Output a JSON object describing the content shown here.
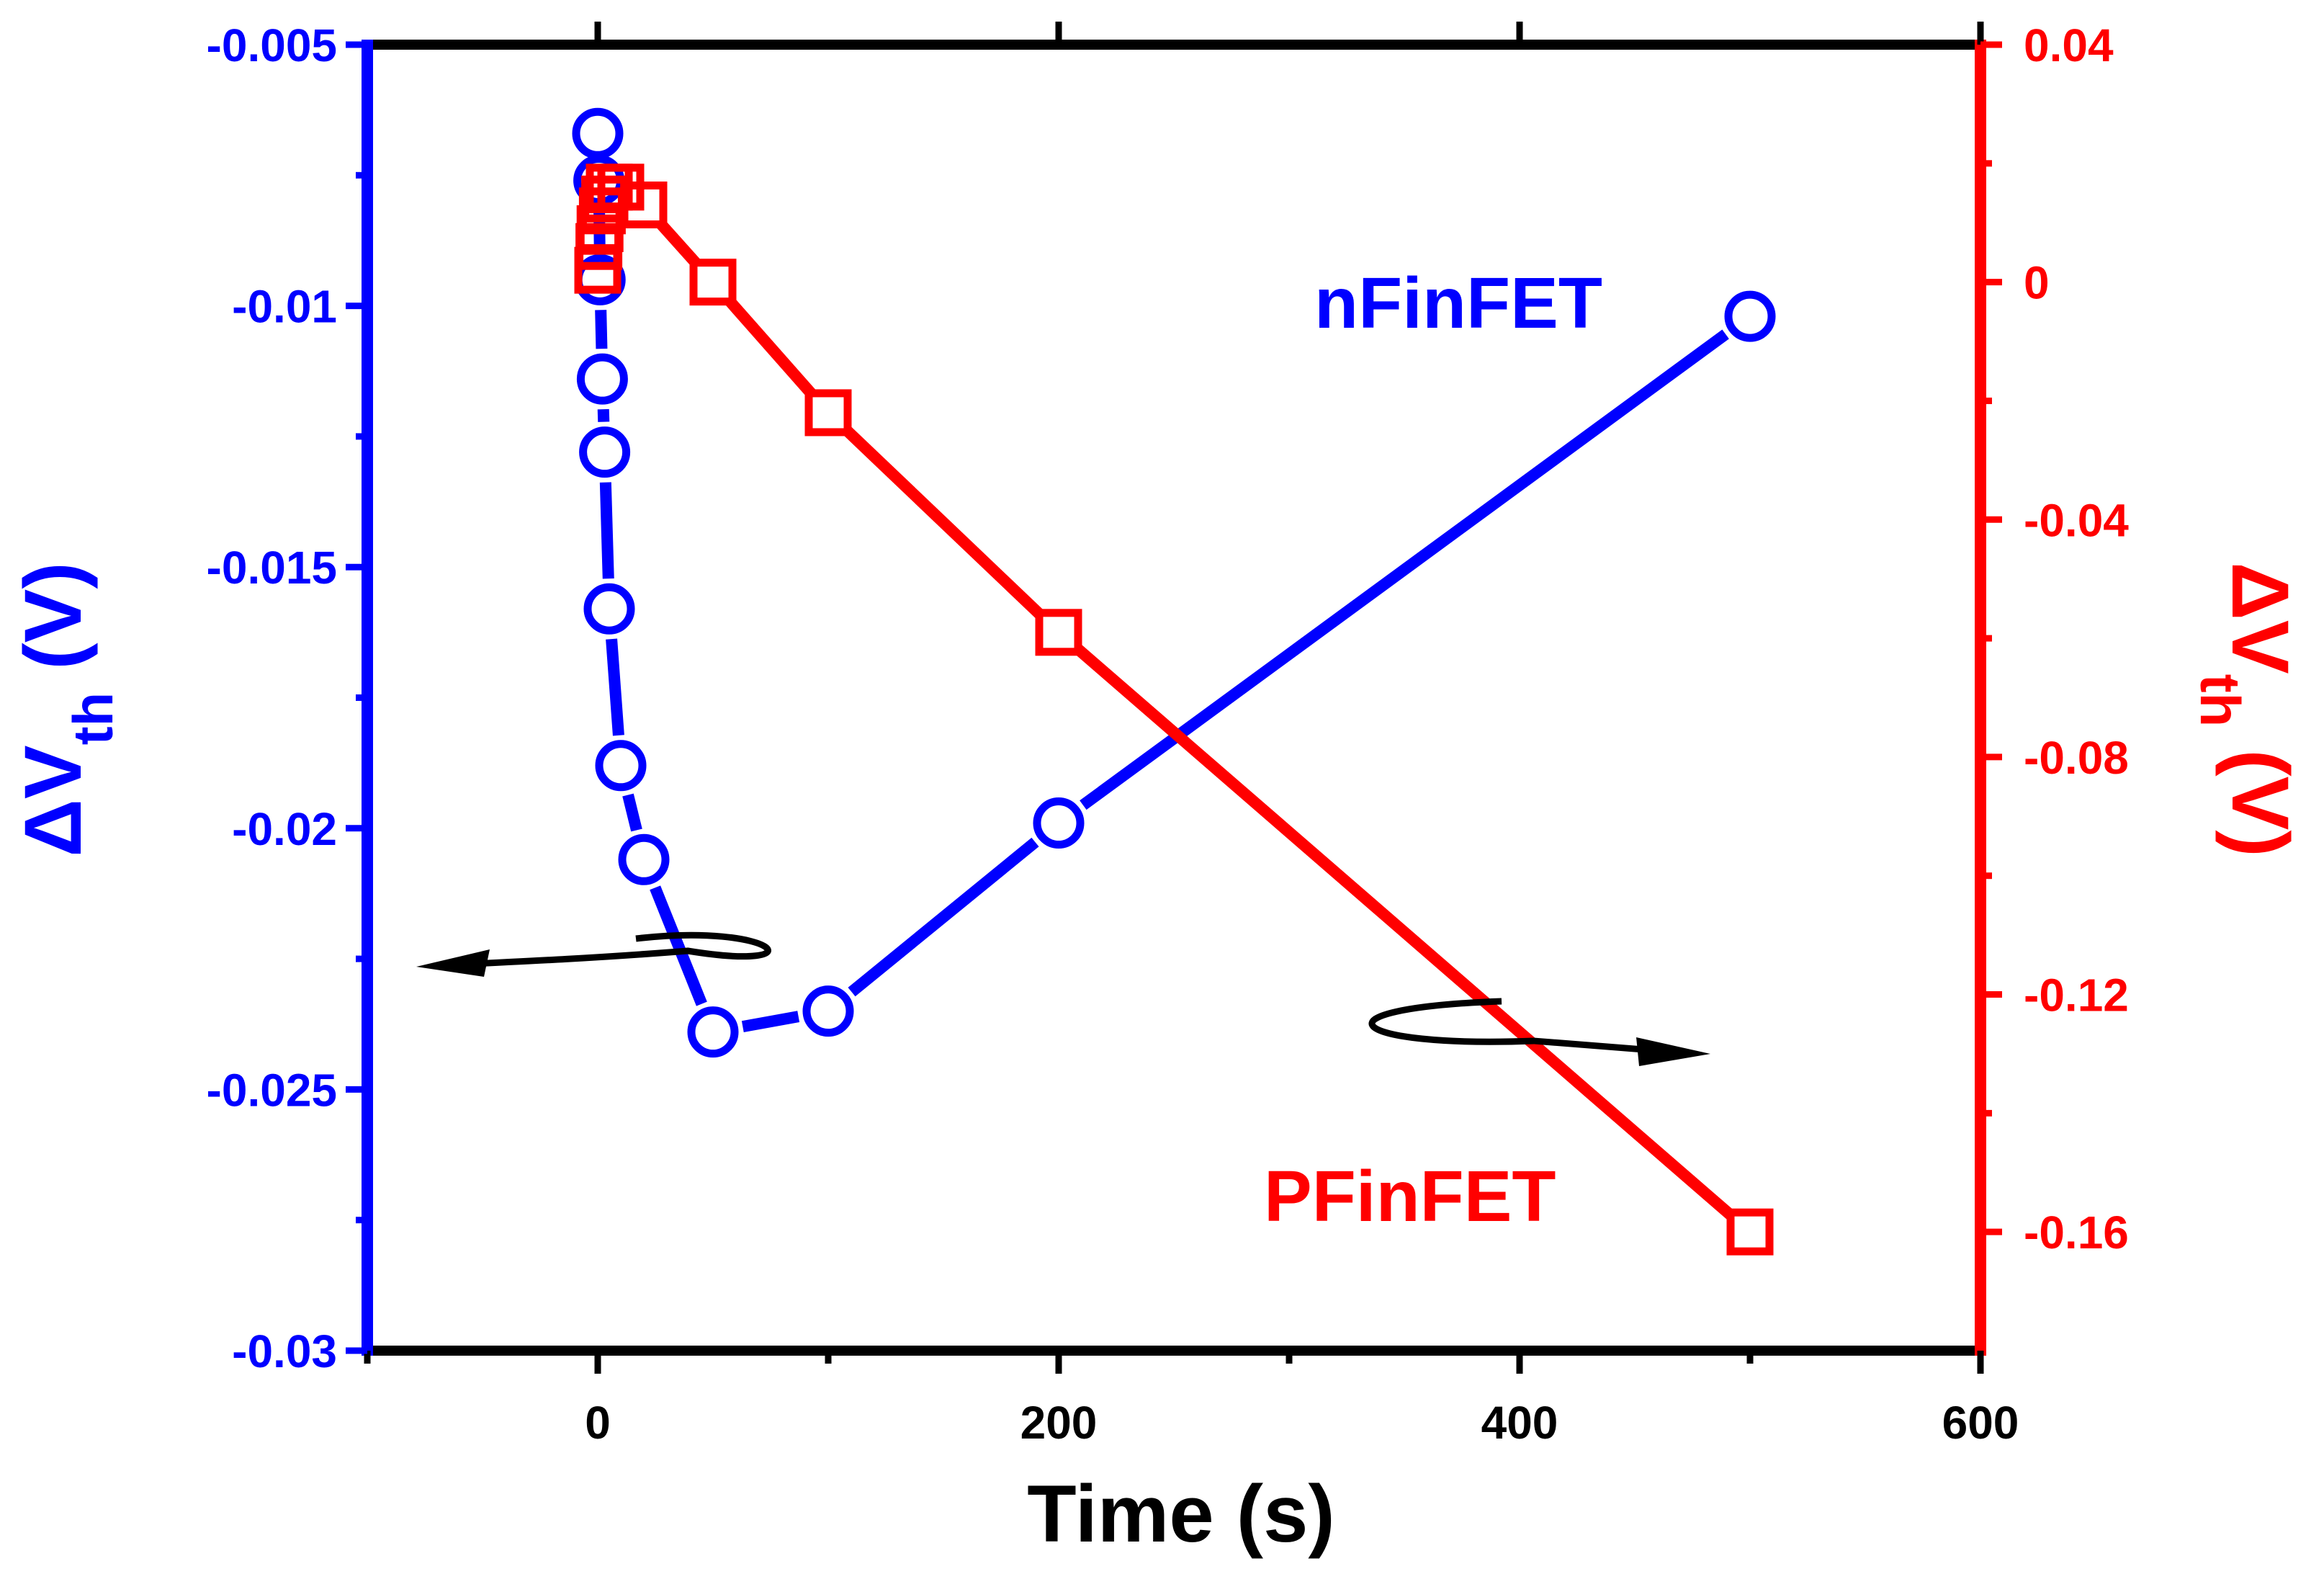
{
  "chart_data": {
    "type": "line",
    "title": "",
    "xlabel": "Time (s)",
    "ylabel_left": "ΔVth (V)",
    "ylabel_right": "ΔVth (V)",
    "xlim": [
      -100,
      600
    ],
    "ylim_left": [
      -0.03,
      -0.005
    ],
    "ylim_right": [
      -0.18,
      0.04
    ],
    "x_ticks": [
      0,
      200,
      400,
      600
    ],
    "x_tick_labels": [
      "0",
      "200",
      "400",
      "600"
    ],
    "y_left_ticks": [
      -0.005,
      -0.01,
      -0.015,
      -0.02,
      -0.025,
      -0.03
    ],
    "y_left_tick_labels": [
      "-0.005",
      "-0.01",
      "-0.015",
      "-0.02",
      "-0.025",
      "-0.03"
    ],
    "y_right_ticks": [
      0.04,
      0,
      -0.04,
      -0.08,
      -0.12,
      -0.16
    ],
    "y_right_tick_labels": [
      "0.04",
      "0",
      "-0.04",
      "-0.08",
      "-0.12",
      "-0.16"
    ],
    "grid": false,
    "colors": {
      "left_axis": "#0000ff",
      "right_axis": "#ff0000",
      "frame": "#000000",
      "arrow": "#000000"
    },
    "annotations": [
      "nFinFET",
      "PFinFET"
    ],
    "series": [
      {
        "name": "nFinFET",
        "axis": "left",
        "marker": "circle",
        "color": "#0000ff",
        "x": [
          0,
          0.5,
          1,
          2,
          3,
          5,
          10,
          20,
          50,
          100,
          200,
          500
        ],
        "y": [
          -0.0067,
          -0.0076,
          -0.0095,
          -0.0114,
          -0.0128,
          -0.0158,
          -0.0188,
          -0.0206,
          -0.0239,
          -0.0235,
          -0.0199,
          -0.0102
        ]
      },
      {
        "name": "PFinFET",
        "axis": "right",
        "marker": "square",
        "color": "#ff0000",
        "x": [
          0,
          0.5,
          1,
          2,
          3,
          5,
          10,
          20,
          50,
          100,
          200,
          500
        ],
        "y": [
          0.002,
          0.006,
          0.009,
          0.012,
          0.014,
          0.016,
          0.016,
          0.013,
          0.0,
          -0.022,
          -0.059,
          -0.16
        ]
      }
    ]
  }
}
